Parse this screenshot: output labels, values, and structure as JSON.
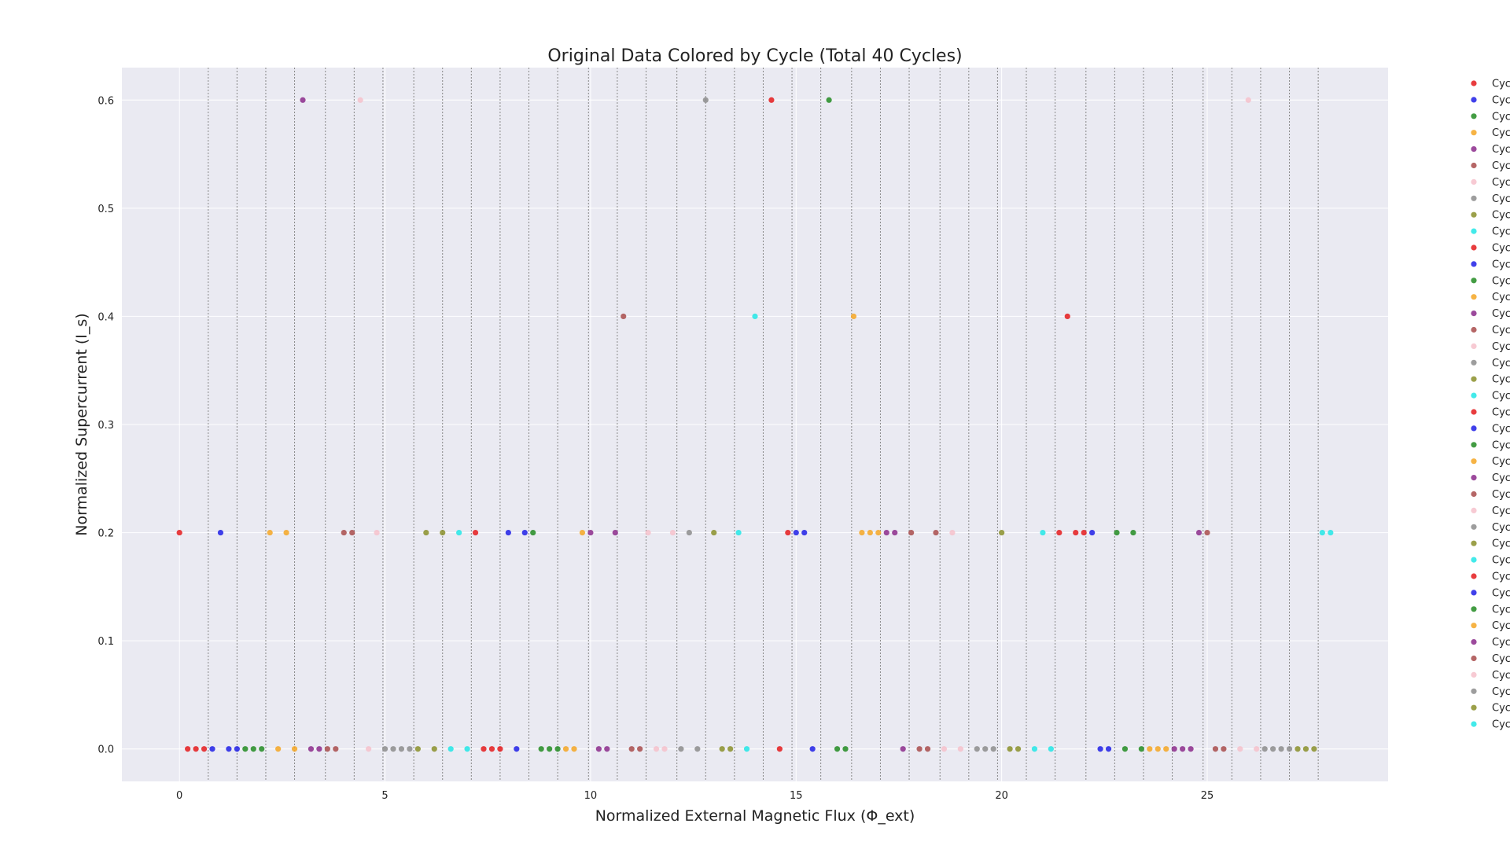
{
  "chart_data": {
    "type": "scatter",
    "title": "Original Data Colored by Cycle (Total 40 Cycles)",
    "xlabel": "Normalized External Magnetic Flux (Φ_ext)",
    "ylabel": "Normalized Supercurrent (I_s)",
    "xlim": [
      -1.4,
      29.4
    ],
    "ylim": [
      -0.03,
      0.63
    ],
    "xticks": [
      0,
      5,
      10,
      15,
      20,
      25
    ],
    "yticks": [
      0.0,
      0.1,
      0.2,
      0.3,
      0.4,
      0.5,
      0.6
    ],
    "grid": true,
    "background_color": "#eaeaf2",
    "cycle_boundaries": [
      0.7,
      1.4,
      2.1,
      2.8,
      3.55,
      4.25,
      4.95,
      5.7,
      6.4,
      7.1,
      7.8,
      8.5,
      9.2,
      9.95,
      10.65,
      11.35,
      12.1,
      12.8,
      13.5,
      14.2,
      14.9,
      15.6,
      16.35,
      17.05,
      17.75,
      18.5,
      19.2,
      19.9,
      20.6,
      21.3,
      22.05,
      22.75,
      23.45,
      24.15,
      24.9,
      25.6,
      26.3,
      27.0,
      27.7
    ],
    "legend": {
      "placement": "outside-right",
      "labels": [
        "Cyc",
        "Cyc",
        "Cyc",
        "Cyc",
        "Cyc",
        "Cyc",
        "Cyc",
        "Cyc",
        "Cyc",
        "Cyc",
        "Cyc",
        "Cyc",
        "Cyc",
        "Cyc",
        "Cyc",
        "Cyc",
        "Cyc",
        "Cyc",
        "Cyc",
        "Cyc",
        "Cyc",
        "Cyc",
        "Cyc",
        "Cyc",
        "Cyc",
        "Cyc",
        "Cyc",
        "Cyc",
        "Cyc",
        "Cyc",
        "Cyc",
        "Cyc",
        "Cyc",
        "Cyc",
        "Cyc",
        "Cyc",
        "Cyc",
        "Cyc",
        "Cyc",
        "Cyc"
      ]
    },
    "palette": [
      "#e41a1c",
      "#1f1fe6",
      "#228b22",
      "#f5a623",
      "#8b2a8b",
      "#a84b4b",
      "#f6c1cb",
      "#8c8c8c",
      "#8a8f2a",
      "#22e6e6"
    ],
    "series": [
      {
        "color_index": 0,
        "x": [
          0.0,
          0.2,
          0.4,
          0.6
        ],
        "y": [
          0.2,
          0.0,
          0.0,
          0.0
        ]
      },
      {
        "color_index": 1,
        "x": [
          0.8,
          1.0,
          1.2,
          1.4
        ],
        "y": [
          0.0,
          0.2,
          0.0,
          0.0
        ]
      },
      {
        "color_index": 2,
        "x": [
          1.6,
          1.8,
          2.0
        ],
        "y": [
          0.0,
          0.0,
          0.0
        ]
      },
      {
        "color_index": 3,
        "x": [
          2.2,
          2.4,
          2.6,
          2.8
        ],
        "y": [
          0.2,
          0.0,
          0.2,
          0.0
        ]
      },
      {
        "color_index": 4,
        "x": [
          3.0,
          3.2,
          3.4
        ],
        "y": [
          0.6,
          0.0,
          0.0
        ]
      },
      {
        "color_index": 5,
        "x": [
          3.6,
          3.8,
          4.0,
          4.2
        ],
        "y": [
          0.0,
          0.0,
          0.2,
          0.2
        ]
      },
      {
        "color_index": 6,
        "x": [
          4.4,
          4.6,
          4.8
        ],
        "y": [
          0.6,
          0.0,
          0.2
        ]
      },
      {
        "color_index": 7,
        "x": [
          5.0,
          5.2,
          5.4,
          5.6
        ],
        "y": [
          0.0,
          0.0,
          0.0,
          0.0
        ]
      },
      {
        "color_index": 8,
        "x": [
          5.8,
          6.0,
          6.2,
          6.4
        ],
        "y": [
          0.0,
          0.2,
          0.0,
          0.2
        ]
      },
      {
        "color_index": 9,
        "x": [
          6.6,
          6.8,
          7.0
        ],
        "y": [
          0.0,
          0.2,
          0.0
        ]
      },
      {
        "color_index": 0,
        "x": [
          7.2,
          7.4,
          7.6,
          7.8
        ],
        "y": [
          0.2,
          0.0,
          0.0,
          0.0
        ]
      },
      {
        "color_index": 1,
        "x": [
          8.0,
          8.2,
          8.4
        ],
        "y": [
          0.2,
          0.0,
          0.2
        ]
      },
      {
        "color_index": 2,
        "x": [
          8.6,
          8.8,
          9.0,
          9.2
        ],
        "y": [
          0.2,
          0.0,
          0.0,
          0.0
        ]
      },
      {
        "color_index": 3,
        "x": [
          9.4,
          9.6,
          9.8
        ],
        "y": [
          0.0,
          0.0,
          0.2
        ]
      },
      {
        "color_index": 4,
        "x": [
          10.0,
          10.2,
          10.4,
          10.6
        ],
        "y": [
          0.2,
          0.0,
          0.0,
          0.2
        ]
      },
      {
        "color_index": 5,
        "x": [
          10.8,
          11.0,
          11.2
        ],
        "y": [
          0.4,
          0.0,
          0.0
        ]
      },
      {
        "color_index": 6,
        "x": [
          11.4,
          11.6,
          11.8,
          12.0
        ],
        "y": [
          0.2,
          0.0,
          0.0,
          0.2
        ]
      },
      {
        "color_index": 7,
        "x": [
          12.2,
          12.4,
          12.6,
          12.8
        ],
        "y": [
          0.0,
          0.2,
          0.0,
          0.6
        ]
      },
      {
        "color_index": 8,
        "x": [
          13.0,
          13.2,
          13.4
        ],
        "y": [
          0.2,
          0.0,
          0.0
        ]
      },
      {
        "color_index": 9,
        "x": [
          13.6,
          13.8,
          14.0
        ],
        "y": [
          0.2,
          0.0,
          0.4
        ]
      },
      {
        "color_index": 0,
        "x": [
          14.4,
          14.6,
          14.8
        ],
        "y": [
          0.6,
          0.0,
          0.2
        ]
      },
      {
        "color_index": 1,
        "x": [
          15.0,
          15.2,
          15.4
        ],
        "y": [
          0.2,
          0.2,
          0.0
        ]
      },
      {
        "color_index": 2,
        "x": [
          15.8,
          16.0,
          16.2
        ],
        "y": [
          0.6,
          0.0,
          0.0
        ]
      },
      {
        "color_index": 3,
        "x": [
          16.4,
          16.6,
          16.8,
          17.0
        ],
        "y": [
          0.4,
          0.2,
          0.2,
          0.2
        ]
      },
      {
        "color_index": 4,
        "x": [
          17.2,
          17.4,
          17.6
        ],
        "y": [
          0.2,
          0.2,
          0.0
        ]
      },
      {
        "color_index": 5,
        "x": [
          17.8,
          18.0,
          18.2,
          18.4
        ],
        "y": [
          0.2,
          0.0,
          0.0,
          0.2
        ]
      },
      {
        "color_index": 6,
        "x": [
          18.6,
          18.8,
          19.0
        ],
        "y": [
          0.0,
          0.2,
          0.0
        ]
      },
      {
        "color_index": 7,
        "x": [
          19.4,
          19.6,
          19.8
        ],
        "y": [
          0.0,
          0.0,
          0.0
        ]
      },
      {
        "color_index": 8,
        "x": [
          20.0,
          20.2,
          20.4
        ],
        "y": [
          0.2,
          0.0,
          0.0
        ]
      },
      {
        "color_index": 9,
        "x": [
          20.8,
          21.0,
          21.2
        ],
        "y": [
          0.0,
          0.2,
          0.0
        ]
      },
      {
        "color_index": 0,
        "x": [
          21.4,
          21.6,
          21.8,
          22.0
        ],
        "y": [
          0.2,
          0.4,
          0.2,
          0.2
        ]
      },
      {
        "color_index": 1,
        "x": [
          22.2,
          22.4,
          22.6
        ],
        "y": [
          0.2,
          0.0,
          0.0
        ]
      },
      {
        "color_index": 2,
        "x": [
          22.8,
          23.0,
          23.2,
          23.4
        ],
        "y": [
          0.2,
          0.0,
          0.2,
          0.0
        ]
      },
      {
        "color_index": 3,
        "x": [
          23.6,
          23.8,
          24.0
        ],
        "y": [
          0.0,
          0.0,
          0.0
        ]
      },
      {
        "color_index": 4,
        "x": [
          24.2,
          24.4,
          24.6,
          24.8
        ],
        "y": [
          0.0,
          0.0,
          0.0,
          0.2
        ]
      },
      {
        "color_index": 5,
        "x": [
          25.0,
          25.2,
          25.4
        ],
        "y": [
          0.2,
          0.0,
          0.0
        ]
      },
      {
        "color_index": 6,
        "x": [
          25.8,
          26.0,
          26.2
        ],
        "y": [
          0.0,
          0.6,
          0.0
        ]
      },
      {
        "color_index": 7,
        "x": [
          26.4,
          26.6,
          26.8,
          27.0
        ],
        "y": [
          0.0,
          0.0,
          0.0,
          0.0
        ]
      },
      {
        "color_index": 8,
        "x": [
          27.2,
          27.4,
          27.6
        ],
        "y": [
          0.0,
          0.0,
          0.0
        ]
      },
      {
        "color_index": 9,
        "x": [
          27.8,
          28.0
        ],
        "y": [
          0.2,
          0.2
        ]
      }
    ]
  }
}
